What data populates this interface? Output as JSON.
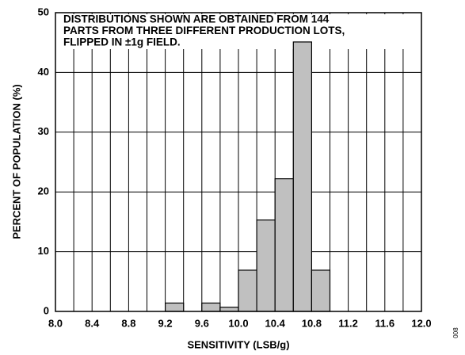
{
  "chart_data": {
    "type": "histogram",
    "annotation": [
      "DISTRIBUTIONS SHOWN ARE OBTAINED FROM 144",
      "PARTS FROM THREE DIFFERENT PRODUCTION LOTS,",
      "FLIPPED IN ±1g FIELD."
    ],
    "x_label": "SENSITIVITY (LSB/g)",
    "y_label": "PERCENT OF POPULATION (%)",
    "figure_id": "008",
    "bins": [
      9.2,
      9.4,
      9.6,
      9.8,
      10.0,
      10.2,
      10.4,
      10.6,
      10.8,
      11.0
    ],
    "values": [
      1.4,
      0,
      1.4,
      0.7,
      6.9,
      15.3,
      22.2,
      45.1,
      6.9
    ],
    "color": "#c0c0c0",
    "xlim": [
      8.0,
      12.0
    ],
    "ylim": [
      0,
      50
    ],
    "xticks": [
      {
        "value": 8.0,
        "label": "8.0"
      },
      {
        "value": 8.4,
        "label": "8.4"
      },
      {
        "value": 8.8,
        "label": "8.8"
      },
      {
        "value": 9.2,
        "label": "9.2"
      },
      {
        "value": 9.6,
        "label": "9.6"
      },
      {
        "value": 10.0,
        "label": "10.0"
      },
      {
        "value": 10.4,
        "label": "10.4"
      },
      {
        "value": 10.8,
        "label": "10.8"
      },
      {
        "value": 11.2,
        "label": "11.2"
      },
      {
        "value": 11.6,
        "label": "11.6"
      },
      {
        "value": 12.0,
        "label": "12.0"
      }
    ],
    "xminorticks": [
      8.2,
      8.6,
      9.0,
      9.4,
      9.8,
      10.2,
      10.6,
      11.0,
      11.4,
      11.8
    ],
    "yticks": [
      0,
      10,
      20,
      30,
      40,
      50
    ],
    "grid": true
  }
}
